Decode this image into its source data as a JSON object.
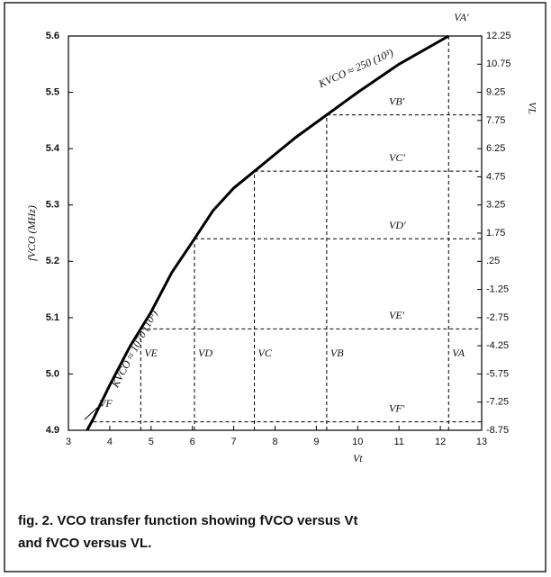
{
  "chart_data": {
    "type": "line",
    "x_label": "Vt",
    "y_label": "fVCO (MHz)",
    "y2_label": "VL",
    "x": [
      3.45,
      3.6,
      4.0,
      4.5,
      4.75,
      5.0,
      5.5,
      6.05,
      6.5,
      7.0,
      7.5,
      8.0,
      8.5,
      9.25,
      10.0,
      11.0,
      12.2
    ],
    "series": [
      {
        "name": "fVCO",
        "color": "#000000",
        "values": [
          4.9,
          4.92,
          4.98,
          5.05,
          5.08,
          5.11,
          5.18,
          5.24,
          5.29,
          5.33,
          5.36,
          5.39,
          5.42,
          5.46,
          5.5,
          5.55,
          5.6
        ]
      }
    ],
    "xlim": [
      3,
      13
    ],
    "xticks": [
      3,
      4,
      5,
      6,
      7,
      8,
      9,
      10,
      11,
      12,
      13
    ],
    "ylim": [
      4.9,
      5.6
    ],
    "yticks": [
      {
        "value": 4.9,
        "label": "4.9"
      },
      {
        "value": 5.0,
        "label": "5.0"
      },
      {
        "value": 5.1,
        "label": "5.1"
      },
      {
        "value": 5.2,
        "label": "5.2"
      },
      {
        "value": 5.3,
        "label": "5.3"
      },
      {
        "value": 5.4,
        "label": "5.4"
      },
      {
        "value": 5.5,
        "label": "5.5"
      },
      {
        "value": 5.6,
        "label": "5.6"
      }
    ],
    "y2lim": [
      -8.75,
      12.25
    ],
    "y2ticks": [
      -8.75,
      -7.25,
      -5.75,
      -4.25,
      -2.75,
      -1.25,
      {
        "value": 0.25,
        "label": ".25"
      },
      1.75,
      3.25,
      4.75,
      6.25,
      7.75,
      9.25,
      10.75,
      12.25
    ],
    "vertical_lines": [
      {
        "label": "VE",
        "x": 4.75,
        "y": 5.08
      },
      {
        "label": "VD",
        "x": 6.05,
        "y": 5.24
      },
      {
        "label": "VC",
        "x": 7.5,
        "y": 5.36
      },
      {
        "label": "VB",
        "x": 9.25,
        "y": 5.46
      },
      {
        "label": "VA",
        "x": 12.2,
        "y": 5.6
      }
    ],
    "horizontal_lines": [
      {
        "label": "VA'",
        "x": 12.2,
        "y": 5.6
      },
      {
        "label": "VB'",
        "x": 9.25,
        "y": 5.46
      },
      {
        "label": "VC'",
        "x": 7.5,
        "y": 5.36
      },
      {
        "label": "VD'",
        "x": 6.05,
        "y": 5.24
      },
      {
        "label": "VE'",
        "x": 4.75,
        "y": 5.08
      },
      {
        "label": "VF'",
        "x": 3.6,
        "y": 4.915
      }
    ],
    "annotations": [
      "KVCO ≈ 250 (10³)",
      "KVCO ≈ 1070 (10³)",
      "VF"
    ],
    "caption": [
      "fig. 2. VCO transfer function showing fVCO versus Vt",
      "and fVCO versus VL."
    ]
  }
}
